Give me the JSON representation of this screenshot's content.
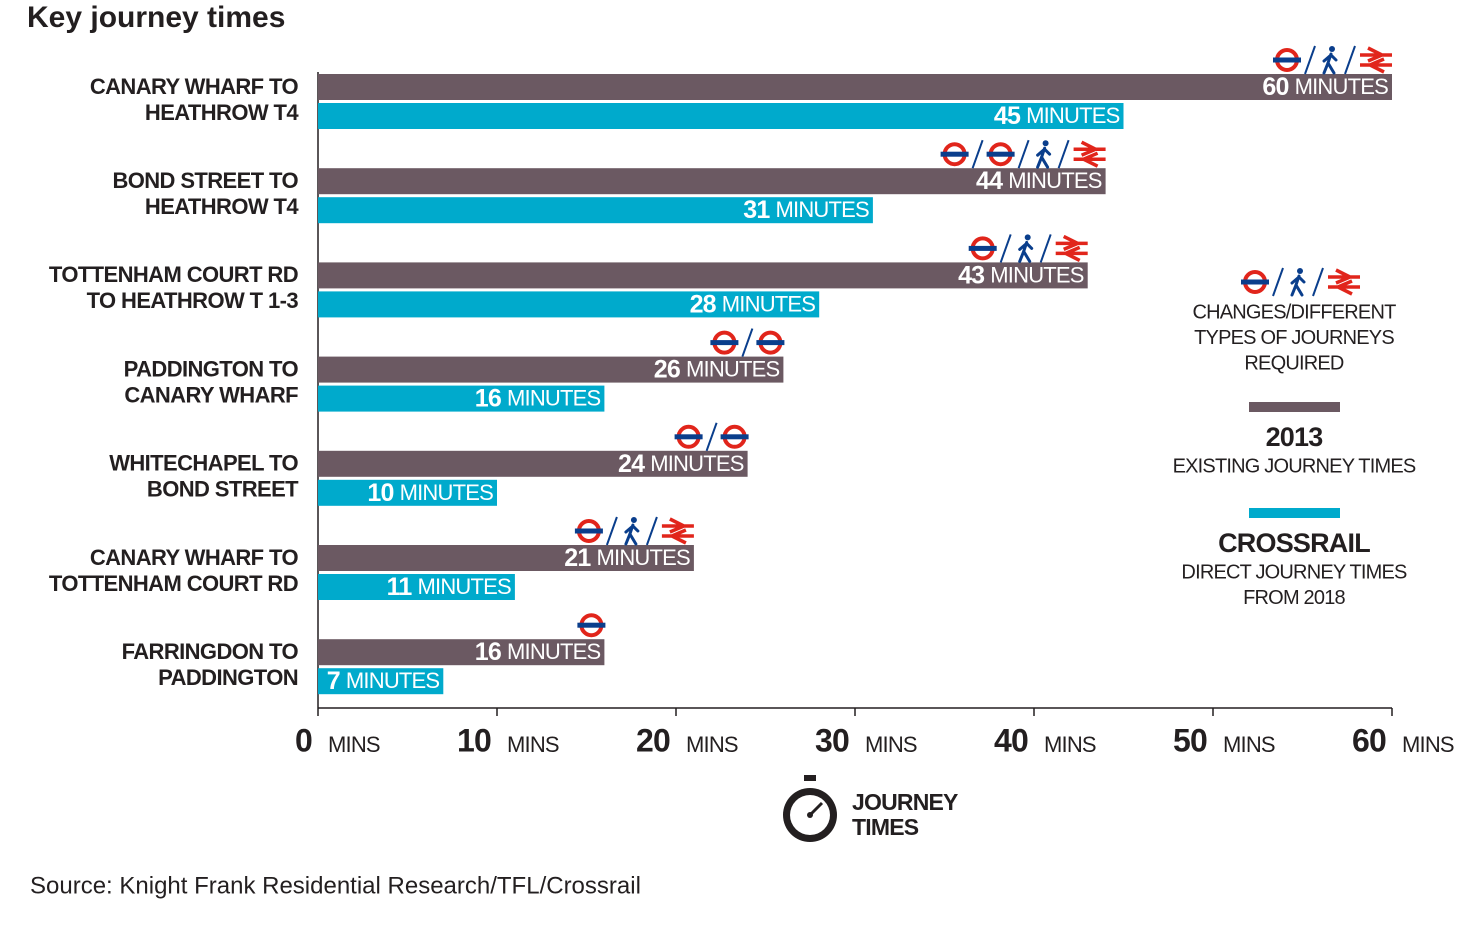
{
  "chart_data": {
    "type": "bar",
    "orientation": "horizontal",
    "title": "Key journey times",
    "source": "Source: Knight Frank Residential Research/TFL/Crossrail",
    "categories": [
      [
        "CANARY WHARF TO",
        "HEATHROW T4"
      ],
      [
        "BOND STREET TO",
        "HEATHROW T4"
      ],
      [
        "TOTTENHAM COURT RD",
        "TO HEATHROW T 1-3"
      ],
      [
        "PADDINGTON TO",
        "CANARY WHARF"
      ],
      [
        "WHITECHAPEL TO",
        "BOND STREET"
      ],
      [
        "CANARY WHARF TO",
        "TOTTENHAM COURT RD"
      ],
      [
        "FARRINGDON TO",
        "PADDINGTON"
      ]
    ],
    "series": [
      {
        "name": "2013",
        "description": [
          "EXISTING JOURNEY TIMES"
        ],
        "color": "#6b5962",
        "values": [
          60,
          44,
          43,
          26,
          24,
          21,
          16
        ],
        "changes": [
          [
            "tube",
            "walk",
            "rail"
          ],
          [
            "tube",
            "tube",
            "walk",
            "rail"
          ],
          [
            "tube",
            "walk",
            "rail"
          ],
          [
            "tube",
            "tube"
          ],
          [
            "tube",
            "tube"
          ],
          [
            "tube",
            "walk",
            "rail"
          ],
          [
            "tube"
          ]
        ]
      },
      {
        "name": "CROSSRAIL",
        "description": [
          "DIRECT JOURNEY TIMES",
          "FROM 2018"
        ],
        "color": "#00aacc",
        "values": [
          45,
          31,
          28,
          16,
          10,
          11,
          7
        ]
      }
    ],
    "value_label_unit": "MINUTES",
    "xlim": [
      0,
      60
    ],
    "xticks": [
      0,
      10,
      20,
      30,
      40,
      50,
      60
    ],
    "x_tick_unit": "MINS",
    "x_label": [
      "JOURNEY",
      "TIMES"
    ],
    "legend_note": [
      "CHANGES/DIFFERENT",
      "TYPES OF JOURNEYS",
      "REQUIRED"
    ]
  }
}
